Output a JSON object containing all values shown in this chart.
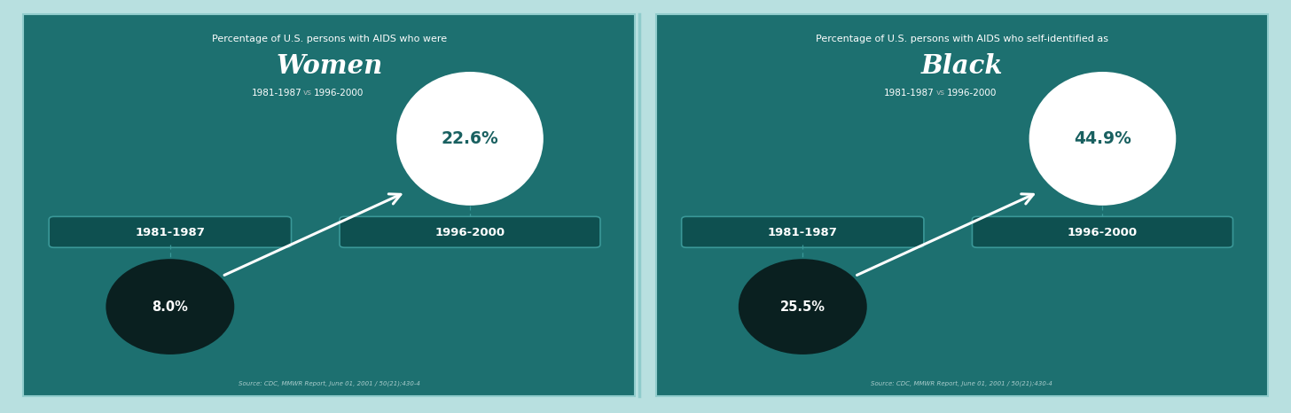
{
  "panels": [
    {
      "title_line1": "Percentage of U.S. persons with AIDS who were",
      "title_line2": "Women",
      "title_line3_left": "1981-1987",
      "title_line3_vs": "vs",
      "title_line3_right": "1996-2000",
      "label_left": "1981-1987",
      "label_right": "1996-2000",
      "value_small": "8.0%",
      "value_large": "22.6%",
      "source": "Source: CDC, MMWR Report, June 01, 2001 / 50(21);430-4"
    },
    {
      "title_line1": "Percentage of U.S. persons with AIDS who self-identified as",
      "title_line2": "Black",
      "title_line3_left": "1981-1987",
      "title_line3_vs": "vs",
      "title_line3_right": "1996-2000",
      "label_left": "1981-1987",
      "label_right": "1996-2000",
      "value_small": "25.5%",
      "value_large": "44.9%",
      "source": "Source: CDC, MMWR Report, June 01, 2001 / 50(21);430-4"
    }
  ],
  "bg_color": "#1d7070",
  "outer_border_color": "#b8e0e0",
  "panel_border_color": "#90cccc",
  "box_facecolor": "#0e5050",
  "box_edgecolor": "#3a9898",
  "small_circle_color": "#0a2020",
  "large_circle_color": "#ffffff",
  "text_white": "#ffffff",
  "text_teal": "#196060",
  "text_grey": "#aabbbb",
  "arrow_color": "#ffffff",
  "dashed_color": "#3a9898",
  "divider_color": "#90cccc"
}
